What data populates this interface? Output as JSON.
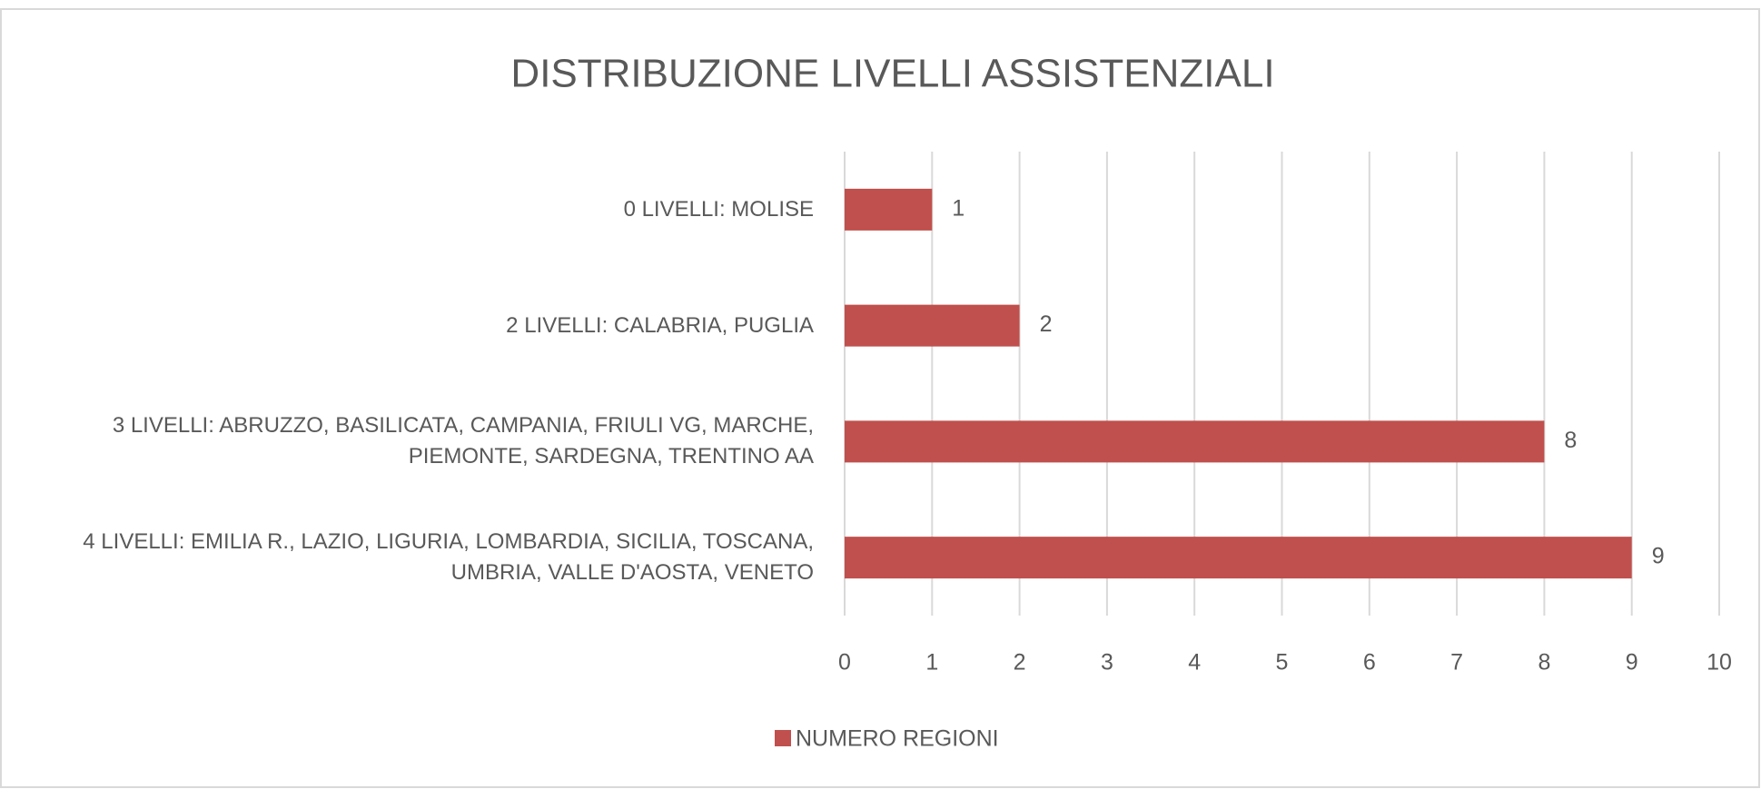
{
  "chart_data": {
    "type": "barh",
    "title": "DISTRIBUZIONE LIVELLI ASSISTENZIALI",
    "categories": [
      "0 LIVELLI: MOLISE",
      "2 LIVELLI: CALABRIA, PUGLIA",
      "3 LIVELLI: ABRUZZO, BASILICATA, CAMPANIA, FRIULI VG, MARCHE, PIEMONTE,  SARDEGNA, TRENTINO AA",
      "4 LIVELLI: EMILIA R., LAZIO, LIGURIA, LOMBARDIA, SICILIA, TOSCANA,  UMBRIA, VALLE D'AOSTA, VENETO"
    ],
    "series": [
      {
        "name": "NUMERO REGIONI",
        "color": "#c0504d",
        "values": [
          1,
          2,
          8,
          9
        ]
      }
    ],
    "xlim": [
      0,
      10
    ],
    "xticks": [
      0,
      1,
      2,
      3,
      4,
      5,
      6,
      7,
      8,
      9,
      10
    ],
    "grid": true,
    "legend": "bottom"
  }
}
